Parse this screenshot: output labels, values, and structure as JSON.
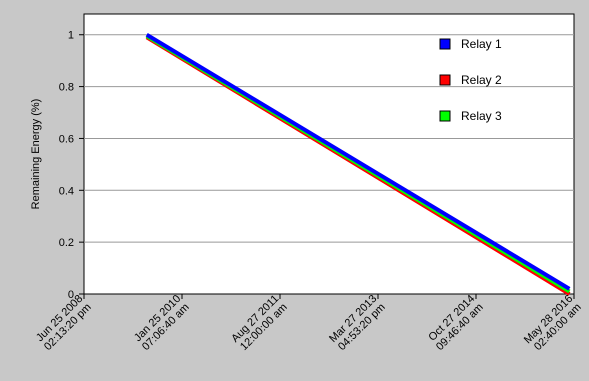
{
  "chart_data": {
    "type": "line",
    "title": "",
    "xlabel": "",
    "ylabel": "Remaining Energy (%)",
    "ylim": [
      0,
      1.08
    ],
    "y_ticks": [
      "0",
      "0.2",
      "0.4",
      "0.6",
      "0.8",
      "1"
    ],
    "y_tick_values": [
      0,
      0.2,
      0.4,
      0.6,
      0.8,
      1
    ],
    "x_tick_labels": [
      [
        "Jun 25 2008",
        "02:13:20 pm"
      ],
      [
        "Jan 25 2010",
        "07:06:40 am"
      ],
      [
        "Aug 27 2011",
        "12:00:00 am"
      ],
      [
        "Mar 27 2013",
        "04:53:20 pm"
      ],
      [
        "Oct 27 2014",
        "09:46:40 am"
      ],
      [
        "May 28 2016",
        "02:40:00 am"
      ]
    ],
    "grid": "horizontal",
    "legend_position": "top-right",
    "series": [
      {
        "name": "Relay 1",
        "color": "#0000ff",
        "x": [
          "Jul 2009",
          "May 2016"
        ],
        "values": [
          1.0,
          0.02
        ]
      },
      {
        "name": "Relay 2",
        "color": "#ff0000",
        "x": [
          "Jul 2009",
          "May 2016"
        ],
        "values": [
          0.99,
          0.0
        ]
      },
      {
        "name": "Relay 3",
        "color": "#00ff00",
        "x": [
          "Jul 2009",
          "May 2016"
        ],
        "values": [
          0.995,
          0.01
        ]
      }
    ]
  }
}
